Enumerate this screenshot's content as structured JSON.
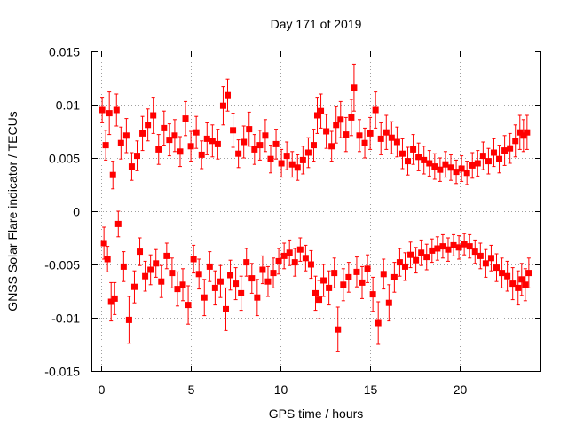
{
  "chart_data": {
    "type": "scatter",
    "title": "Day 171 of 2019",
    "xlabel": "GPS time / hours",
    "ylabel": "GNSS Solar Flare indicator / TECUs",
    "xlim": [
      -0.5,
      24.5
    ],
    "ylim": [
      -0.015,
      0.015
    ],
    "xticks": [
      0,
      5,
      10,
      15,
      20
    ],
    "xtick_labels": [
      "0",
      "5",
      "10",
      "15",
      "20"
    ],
    "yticks": [
      -0.015,
      -0.01,
      -0.005,
      0,
      0.005,
      0.01,
      0.015
    ],
    "ytick_labels": [
      "-0.015",
      "-0.01",
      "-0.005",
      "0",
      "0.005",
      "0.01",
      "0.015"
    ],
    "grid": true,
    "series": [
      {
        "name": "GNSS Solar Flare indicator",
        "color": "#ff0000",
        "marker": "square",
        "error_bars": true,
        "sampling": "dense per-epoch values (about 2880 points, 30 s cadence) shown here as a representative subset",
        "points": [
          [
            0.05,
            0.0095,
            0.0012
          ],
          [
            0.15,
            -0.003,
            0.0015
          ],
          [
            0.25,
            0.0062,
            0.0014
          ],
          [
            0.35,
            -0.0045,
            0.0012
          ],
          [
            0.45,
            0.0092,
            0.002
          ],
          [
            0.55,
            -0.0085,
            0.0018
          ],
          [
            0.65,
            0.0034,
            0.0013
          ],
          [
            0.75,
            -0.0082,
            0.0015
          ],
          [
            0.85,
            0.0095,
            0.0015
          ],
          [
            0.95,
            -0.0012,
            0.0012
          ],
          [
            1.1,
            0.0064,
            0.0015
          ],
          [
            1.25,
            -0.0052,
            0.0014
          ],
          [
            1.4,
            0.0071,
            0.0016
          ],
          [
            1.55,
            -0.0102,
            0.0022
          ],
          [
            1.7,
            0.0042,
            0.0013
          ],
          [
            1.85,
            -0.0071,
            0.0015
          ],
          [
            2.0,
            0.0052,
            0.0014
          ],
          [
            2.15,
            -0.0038,
            0.0013
          ],
          [
            2.3,
            0.0073,
            0.0016
          ],
          [
            2.45,
            -0.0061,
            0.0014
          ],
          [
            2.6,
            0.0081,
            0.0015
          ],
          [
            2.75,
            -0.0055,
            0.0014
          ],
          [
            2.9,
            0.009,
            0.0017
          ],
          [
            3.05,
            -0.0049,
            0.0013
          ],
          [
            3.2,
            0.0058,
            0.0014
          ],
          [
            3.35,
            -0.0066,
            0.0015
          ],
          [
            3.5,
            0.0078,
            0.0016
          ],
          [
            3.65,
            -0.0042,
            0.0012
          ],
          [
            3.8,
            0.0067,
            0.0015
          ],
          [
            3.95,
            -0.0058,
            0.0014
          ],
          [
            4.1,
            0.0071,
            0.0015
          ],
          [
            4.25,
            -0.0073,
            0.0016
          ],
          [
            4.4,
            0.0056,
            0.0014
          ],
          [
            4.55,
            -0.0069,
            0.0015
          ],
          [
            4.7,
            0.0087,
            0.0016
          ],
          [
            4.85,
            -0.0088,
            0.0018
          ],
          [
            5.0,
            0.0061,
            0.0014
          ],
          [
            5.15,
            -0.0045,
            0.0013
          ],
          [
            5.3,
            0.0074,
            0.0015
          ],
          [
            5.45,
            -0.0059,
            0.0014
          ],
          [
            5.6,
            0.0053,
            0.0013
          ],
          [
            5.75,
            -0.0081,
            0.0017
          ],
          [
            5.9,
            0.0068,
            0.0015
          ],
          [
            6.05,
            -0.0052,
            0.0014
          ],
          [
            6.2,
            0.0066,
            0.0015
          ],
          [
            6.35,
            -0.0072,
            0.0016
          ],
          [
            6.5,
            0.0063,
            0.0014
          ],
          [
            6.65,
            -0.0066,
            0.0015
          ],
          [
            6.8,
            0.0099,
            0.0018
          ],
          [
            6.95,
            -0.0092,
            0.002
          ],
          [
            7.05,
            0.0109,
            0.0015
          ],
          [
            7.2,
            -0.006,
            0.0014
          ],
          [
            7.35,
            0.0076,
            0.0016
          ],
          [
            7.5,
            -0.0068,
            0.0015
          ],
          [
            7.65,
            0.0054,
            0.0013
          ],
          [
            7.8,
            -0.0077,
            0.0016
          ],
          [
            7.95,
            0.0065,
            0.0015
          ],
          [
            8.1,
            -0.0048,
            0.0013
          ],
          [
            8.25,
            0.0077,
            0.0016
          ],
          [
            8.4,
            -0.0063,
            0.0014
          ],
          [
            8.55,
            0.0058,
            0.0014
          ],
          [
            8.7,
            -0.0081,
            0.0017
          ],
          [
            8.85,
            0.0062,
            0.0014
          ],
          [
            9.0,
            -0.0055,
            0.0013
          ],
          [
            9.15,
            0.0071,
            0.0015
          ],
          [
            9.3,
            -0.0066,
            0.0014
          ],
          [
            9.45,
            0.0049,
            0.0013
          ],
          [
            9.6,
            -0.0058,
            0.0014
          ],
          [
            9.75,
            0.0063,
            0.0014
          ],
          [
            9.9,
            -0.0047,
            0.0012
          ],
          [
            10.05,
            0.0045,
            0.0013
          ],
          [
            10.2,
            -0.0042,
            0.0012
          ],
          [
            10.35,
            0.0052,
            0.0013
          ],
          [
            10.5,
            -0.0039,
            0.0012
          ],
          [
            10.65,
            0.0044,
            0.0012
          ],
          [
            10.8,
            -0.0048,
            0.0013
          ],
          [
            10.95,
            0.0041,
            0.0012
          ],
          [
            11.1,
            -0.0036,
            0.0011
          ],
          [
            11.25,
            0.0048,
            0.0013
          ],
          [
            11.4,
            -0.0044,
            0.0012
          ],
          [
            11.55,
            0.0055,
            0.0014
          ],
          [
            11.7,
            -0.005,
            0.0013
          ],
          [
            11.85,
            0.0062,
            0.0015
          ],
          [
            11.95,
            -0.0077,
            0.0016
          ],
          [
            12.05,
            0.009,
            0.0017
          ],
          [
            12.15,
            -0.0083,
            0.0018
          ],
          [
            12.25,
            0.0094,
            0.0016
          ],
          [
            12.4,
            -0.0065,
            0.0015
          ],
          [
            12.55,
            0.0075,
            0.0016
          ],
          [
            12.7,
            -0.0072,
            0.0016
          ],
          [
            12.85,
            0.0061,
            0.0014
          ],
          [
            13.0,
            -0.0058,
            0.0014
          ],
          [
            13.1,
            0.0081,
            0.0017
          ],
          [
            13.2,
            -0.0111,
            0.0021
          ],
          [
            13.35,
            0.0086,
            0.0017
          ],
          [
            13.5,
            -0.0069,
            0.0015
          ],
          [
            13.65,
            0.0072,
            0.0016
          ],
          [
            13.8,
            -0.0062,
            0.0014
          ],
          [
            13.95,
            0.0088,
            0.0017
          ],
          [
            14.1,
            0.0116,
            0.0022
          ],
          [
            14.25,
            -0.0057,
            0.0014
          ],
          [
            14.4,
            0.0071,
            0.0015
          ],
          [
            14.55,
            -0.0067,
            0.0015
          ],
          [
            14.7,
            0.0064,
            0.0014
          ],
          [
            14.85,
            -0.0054,
            0.0013
          ],
          [
            15.0,
            0.0073,
            0.0015
          ],
          [
            15.15,
            -0.0078,
            0.0016
          ],
          [
            15.3,
            0.0095,
            0.0017
          ],
          [
            15.45,
            -0.0105,
            0.002
          ],
          [
            15.6,
            0.0068,
            0.0015
          ],
          [
            15.75,
            -0.0059,
            0.0014
          ],
          [
            15.9,
            0.0074,
            0.0016
          ],
          [
            16.05,
            -0.0086,
            0.0017
          ],
          [
            16.2,
            0.0069,
            0.0015
          ],
          [
            16.35,
            -0.0062,
            0.0014
          ],
          [
            16.5,
            0.0065,
            0.0014
          ],
          [
            16.65,
            -0.0048,
            0.0013
          ],
          [
            16.8,
            0.0054,
            0.0014
          ],
          [
            16.95,
            -0.0052,
            0.0013
          ],
          [
            17.1,
            0.0047,
            0.0013
          ],
          [
            17.25,
            -0.0041,
            0.0012
          ],
          [
            17.4,
            0.0058,
            0.0014
          ],
          [
            17.55,
            -0.0046,
            0.0012
          ],
          [
            17.7,
            0.0051,
            0.0013
          ],
          [
            17.85,
            -0.0039,
            0.0012
          ],
          [
            18.0,
            0.0048,
            0.0013
          ],
          [
            18.15,
            -0.0043,
            0.0012
          ],
          [
            18.3,
            0.0045,
            0.0012
          ],
          [
            18.45,
            -0.0037,
            0.0011
          ],
          [
            18.6,
            0.0042,
            0.0012
          ],
          [
            18.75,
            -0.0035,
            0.0011
          ],
          [
            18.9,
            0.0039,
            0.0011
          ],
          [
            19.05,
            -0.0033,
            0.0011
          ],
          [
            19.2,
            0.0044,
            0.0012
          ],
          [
            19.35,
            -0.0036,
            0.0011
          ],
          [
            19.5,
            0.0041,
            0.0012
          ],
          [
            19.65,
            -0.0032,
            0.001
          ],
          [
            19.8,
            0.0037,
            0.0011
          ],
          [
            19.95,
            -0.0034,
            0.0011
          ],
          [
            20.1,
            0.004,
            0.0012
          ],
          [
            20.25,
            -0.0031,
            0.001
          ],
          [
            20.4,
            0.0036,
            0.0011
          ],
          [
            20.55,
            -0.0033,
            0.0011
          ],
          [
            20.7,
            0.0043,
            0.0012
          ],
          [
            20.85,
            -0.0038,
            0.0011
          ],
          [
            21.0,
            0.0045,
            0.0012
          ],
          [
            21.15,
            -0.0042,
            0.0012
          ],
          [
            21.3,
            0.0052,
            0.0013
          ],
          [
            21.45,
            -0.0049,
            0.0013
          ],
          [
            21.6,
            0.0047,
            0.0012
          ],
          [
            21.75,
            -0.0044,
            0.0012
          ],
          [
            21.9,
            0.0055,
            0.0013
          ],
          [
            22.05,
            -0.0053,
            0.0013
          ],
          [
            22.2,
            0.0049,
            0.0013
          ],
          [
            22.35,
            -0.0058,
            0.0014
          ],
          [
            22.5,
            0.0057,
            0.0014
          ],
          [
            22.65,
            -0.0061,
            0.0014
          ],
          [
            22.8,
            0.0059,
            0.0014
          ],
          [
            22.95,
            -0.0068,
            0.0015
          ],
          [
            23.1,
            0.0066,
            0.0015
          ],
          [
            23.25,
            -0.0072,
            0.0016
          ],
          [
            23.35,
            0.0074,
            0.0016
          ],
          [
            23.45,
            -0.0064,
            0.0015
          ],
          [
            23.55,
            0.0071,
            0.0015
          ],
          [
            23.65,
            -0.0069,
            0.0015
          ],
          [
            23.75,
            0.0074,
            0.0016
          ],
          [
            23.85,
            -0.0058,
            0.0014
          ]
        ]
      }
    ]
  }
}
